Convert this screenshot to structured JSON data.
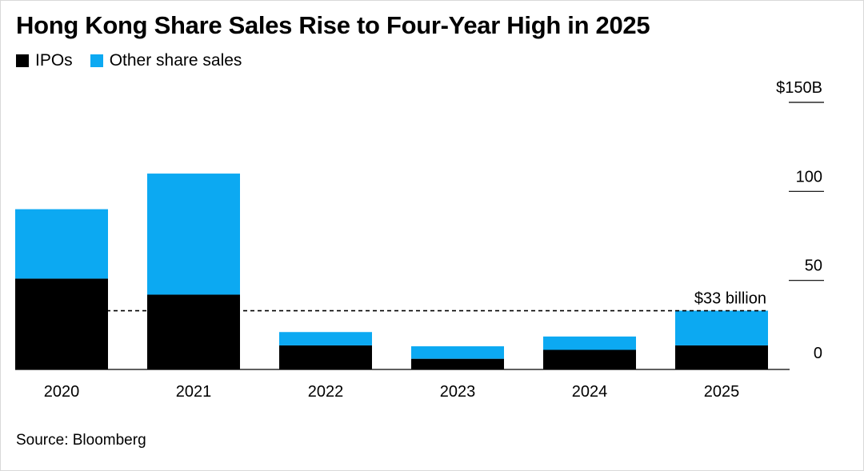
{
  "title": "Hong Kong Share Sales Rise to Four-Year High in 2025",
  "source": "Source: Bloomberg",
  "colors": {
    "ipo": "#000000",
    "other": "#0ca9f2"
  },
  "chart_data": {
    "type": "bar",
    "stacked": true,
    "title": "Hong Kong Share Sales Rise to Four-Year High in 2025",
    "categories": [
      "2020",
      "2021",
      "2022",
      "2023",
      "2024",
      "2025"
    ],
    "series": [
      {
        "name": "IPOs",
        "color": "#000000",
        "values": [
          51,
          42,
          13.5,
          6,
          11,
          13.5
        ]
      },
      {
        "name": "Other share sales",
        "color": "#0ca9f2",
        "values": [
          39,
          68,
          7.5,
          7,
          7.5,
          19.5
        ]
      }
    ],
    "ylim": [
      0,
      150
    ],
    "yticks": [
      0,
      50,
      100,
      150
    ],
    "ytick_labels": [
      "0",
      "50",
      "100",
      "$150B"
    ],
    "yaxis_side": "right",
    "reference_line": {
      "value": 33,
      "label": "$33 billion",
      "style": "dashed"
    },
    "grid": false,
    "legend_position": "top-left"
  }
}
